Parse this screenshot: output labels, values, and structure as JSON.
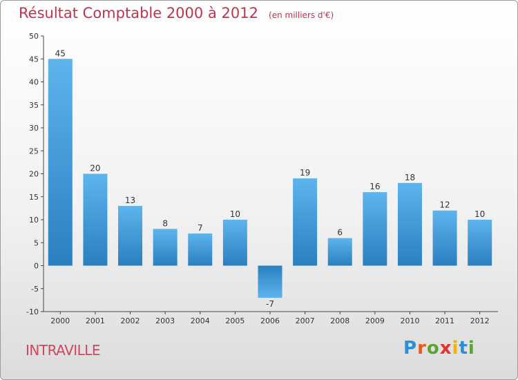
{
  "header": {
    "title": "Résultat Comptable 2000 à 2012",
    "subtitle": "(en milliers d'€)"
  },
  "footer": {
    "commune": "INTRAVILLE",
    "logo_letters": [
      "P",
      "r",
      "o",
      "x",
      "i",
      "t",
      "i"
    ],
    "logo_colors": [
      "#2a8fd6",
      "#e35b1e",
      "#5aa532",
      "#e0342c",
      "#f0b400",
      "#2a8fd6",
      "#5aa532"
    ]
  },
  "colors": {
    "bar_top": "#5eb4ec",
    "bar_bottom": "#2a7fc0",
    "title": "#c0344b"
  },
  "chart_data": {
    "type": "bar",
    "title": "Résultat Comptable 2000 à 2012",
    "xlabel": "",
    "ylabel": "",
    "categories": [
      "2000",
      "2001",
      "2002",
      "2003",
      "2004",
      "2005",
      "2006",
      "2007",
      "2008",
      "2009",
      "2010",
      "2011",
      "2012"
    ],
    "values": [
      45,
      20,
      13,
      8,
      7,
      10,
      -7,
      19,
      6,
      16,
      18,
      12,
      10
    ],
    "ylim": [
      -10,
      50
    ],
    "yticks": [
      -10,
      -5,
      0,
      5,
      10,
      15,
      20,
      25,
      30,
      35,
      40,
      45,
      50
    ],
    "data_labels": [
      "45",
      "20",
      "13",
      "8",
      "7",
      "10",
      "-7",
      "19",
      "6",
      "16",
      "18",
      "12",
      "10"
    ],
    "grid": false
  }
}
